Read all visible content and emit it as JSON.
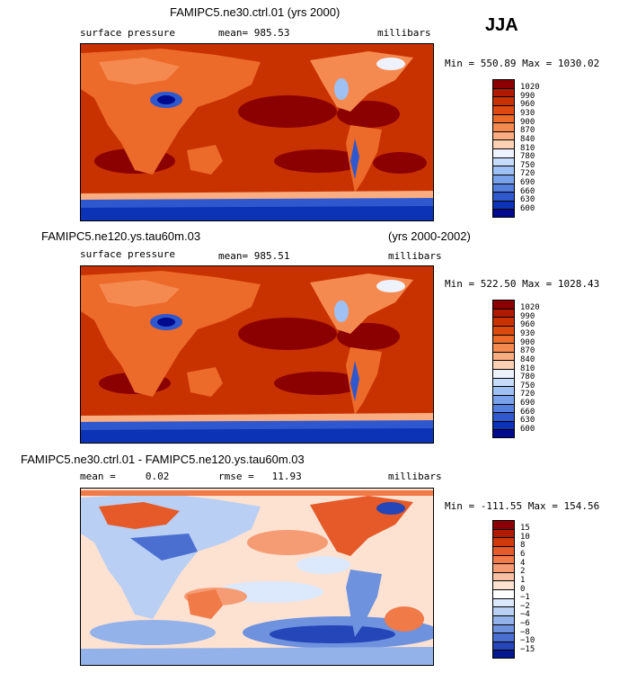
{
  "season": "JJA",
  "panels": [
    {
      "title": "FAMIPC5.ne30.ctrl.01 (yrs 2000)",
      "left_label": "surface pressure",
      "center_label": "mean= 985.53",
      "right_label": "millibars",
      "minmax": "Min = 550.89  Max = 1030.02",
      "colorbar_labels": [
        "1020",
        "990",
        "960",
        "930",
        "900",
        "870",
        "840",
        "810",
        "780",
        "750",
        "720",
        "690",
        "660",
        "630",
        "600"
      ]
    },
    {
      "title": "FAMIPC5.ne120.ys.tau60m.03",
      "title_right": "(yrs 2000-2002)",
      "left_label": "surface pressure",
      "center_label": "mean= 985.51",
      "right_label": "millibars",
      "minmax": "Min = 522.50  Max = 1028.43",
      "colorbar_labels": [
        "1020",
        "990",
        "960",
        "930",
        "900",
        "870",
        "840",
        "810",
        "780",
        "750",
        "720",
        "690",
        "660",
        "630",
        "600"
      ]
    },
    {
      "title": "FAMIPC5.ne30.ctrl.01 - FAMIPC5.ne120.ys.tau60m.03",
      "left_label": "mean =     0.02",
      "center_label": "rmse =   11.93",
      "right_label": "millibars",
      "minmax": "Min = -111.55  Max = 154.56",
      "colorbar_labels": [
        "15",
        "10",
        "8",
        "6",
        "4",
        "2",
        "1",
        "0",
        "−1",
        "−2",
        "−4",
        "−6",
        "−8",
        "−10",
        "−15"
      ]
    }
  ],
  "colors": {
    "pressure_scale": [
      "#8b0000",
      "#b01a00",
      "#c83200",
      "#dd4a10",
      "#ec6a2a",
      "#f58a50",
      "#f9ad80",
      "#fbd0b3",
      "#eef2ff",
      "#c6dcfb",
      "#9fc0f3",
      "#7aa2ea",
      "#547fdd",
      "#2f58ce",
      "#0c32b6",
      "#000a8c"
    ],
    "diff_scale": [
      "#8b0000",
      "#b01a00",
      "#cf3a0c",
      "#e55a28",
      "#f07a48",
      "#f69c74",
      "#fac0a4",
      "#fde2d2",
      "#ffffff",
      "#dce8fb",
      "#b9cff3",
      "#93b2e9",
      "#6e92de",
      "#4a6fd0",
      "#2446b8",
      "#00198f"
    ]
  }
}
